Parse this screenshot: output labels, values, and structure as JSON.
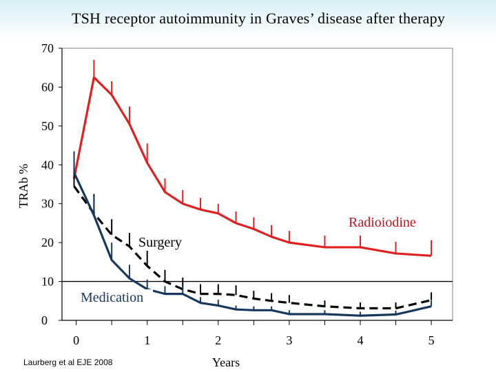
{
  "title": "TSH receptor autoimmunity in Graves’ disease after therapy",
  "citation": "Laurberg et al EJE 2008",
  "chart_data": {
    "type": "line",
    "title": "TSH receptor autoimmunity in Graves’ disease after therapy",
    "xlabel": "Years",
    "ylabel": "TRAb %",
    "xlim": [
      -0.2,
      5.3
    ],
    "ylim": [
      0,
      70
    ],
    "xticks": [
      0,
      1,
      2,
      3,
      4,
      5
    ],
    "yticks": [
      0,
      10,
      20,
      30,
      40,
      50,
      60,
      70
    ],
    "grid": false,
    "reference_line": 10,
    "series": [
      {
        "name": "Radioiodine",
        "color": "#e02020",
        "style": "solid",
        "x": [
          -0.03,
          0.25,
          0.5,
          0.75,
          1.0,
          1.25,
          1.5,
          1.75,
          2.0,
          2.25,
          2.5,
          2.75,
          3.0,
          3.5,
          4.0,
          4.5,
          5.0
        ],
        "y": [
          36.5,
          62.5,
          58.0,
          50.5,
          40.5,
          33.0,
          30.0,
          28.5,
          27.5,
          25.0,
          23.5,
          21.5,
          20.0,
          18.8,
          18.8,
          17.2,
          16.6
        ],
        "errors": [
          5,
          4.5,
          3.5,
          4.5,
          5,
          3.5,
          3.5,
          3,
          2.5,
          3,
          3,
          3,
          3,
          3,
          3,
          3,
          4
        ]
      },
      {
        "name": "Surgery",
        "color": "#000000",
        "style": "dashed",
        "x": [
          -0.03,
          0.25,
          0.5,
          0.75,
          1.0,
          1.25,
          1.5,
          1.75,
          2.0,
          2.25,
          2.5,
          2.75,
          3.0,
          3.5,
          4.0,
          4.5,
          5.0
        ],
        "y": [
          34.5,
          27.5,
          22.0,
          19.0,
          14.0,
          10.0,
          8.0,
          6.8,
          6.8,
          6.5,
          5.6,
          5.0,
          4.5,
          3.6,
          3.1,
          3.1,
          5.2
        ],
        "errors": [
          6,
          5,
          4,
          3.5,
          4,
          3,
          3,
          2.5,
          2.5,
          2.5,
          2,
          2,
          2,
          1.5,
          1.5,
          1.5,
          2
        ]
      },
      {
        "name": "Medication",
        "color": "#17375e",
        "style": "solid",
        "x": [
          -0.03,
          0.25,
          0.5,
          0.75,
          1.0,
          1.25,
          1.5,
          1.75,
          2.0,
          2.25,
          2.5,
          2.75,
          3.0,
          3.5,
          4.0,
          4.5,
          5.0
        ],
        "y": [
          38.0,
          27.0,
          15.5,
          10.8,
          8.0,
          6.8,
          6.8,
          4.5,
          3.8,
          2.8,
          2.6,
          2.6,
          1.6,
          1.6,
          1.2,
          1.5,
          3.6
        ],
        "errors": [
          5.5,
          5,
          4.5,
          3.5,
          2.5,
          2,
          2,
          1.5,
          1.5,
          1,
          1,
          1,
          1,
          1,
          1,
          1,
          1.5
        ]
      }
    ],
    "annotations": [
      {
        "text": "Radioiodine",
        "series": "Radioiodine"
      },
      {
        "text": "Surgery",
        "series": "Surgery"
      },
      {
        "text": "Medication",
        "series": "Medication"
      }
    ]
  }
}
